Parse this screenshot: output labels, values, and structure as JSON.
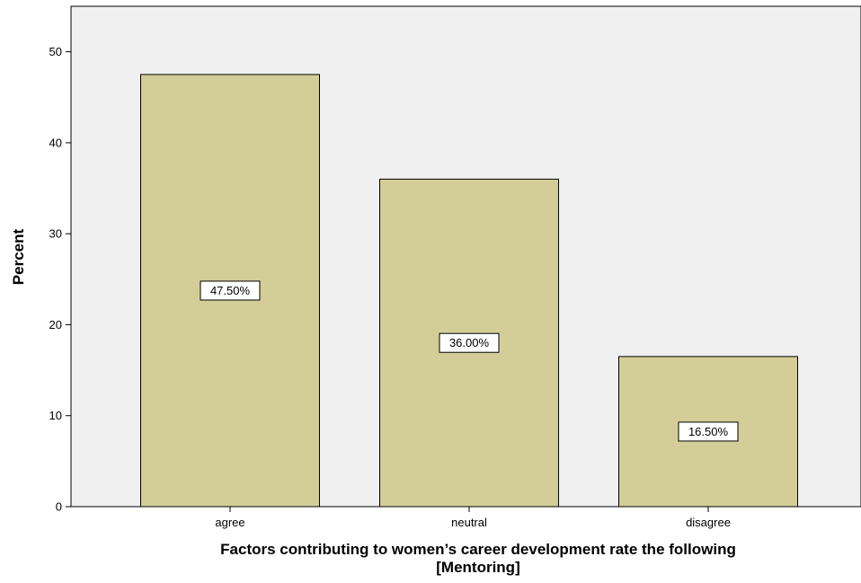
{
  "chart_data": {
    "type": "bar",
    "categories": [
      "agree",
      "neutral",
      "disagree"
    ],
    "values": [
      47.5,
      36.0,
      16.5
    ],
    "data_labels": [
      "47.50%",
      "36.00%",
      "16.50%"
    ],
    "title": "",
    "xlabel_lines": [
      "Factors contributing to women’s career development rate the following",
      "[Mentoring]"
    ],
    "ylabel": "Percent",
    "ylim": [
      0,
      55
    ],
    "yticks": [
      0,
      10,
      20,
      30,
      40,
      50
    ],
    "ytick_labels": [
      "0",
      "10",
      "20",
      "30",
      "40",
      "50"
    ],
    "grid": false,
    "colors": {
      "plot_background": "#f0f0f0",
      "bar_fill": "#d3ce97",
      "bar_stroke": "#000000",
      "label_box_fill": "#ffffff"
    }
  }
}
